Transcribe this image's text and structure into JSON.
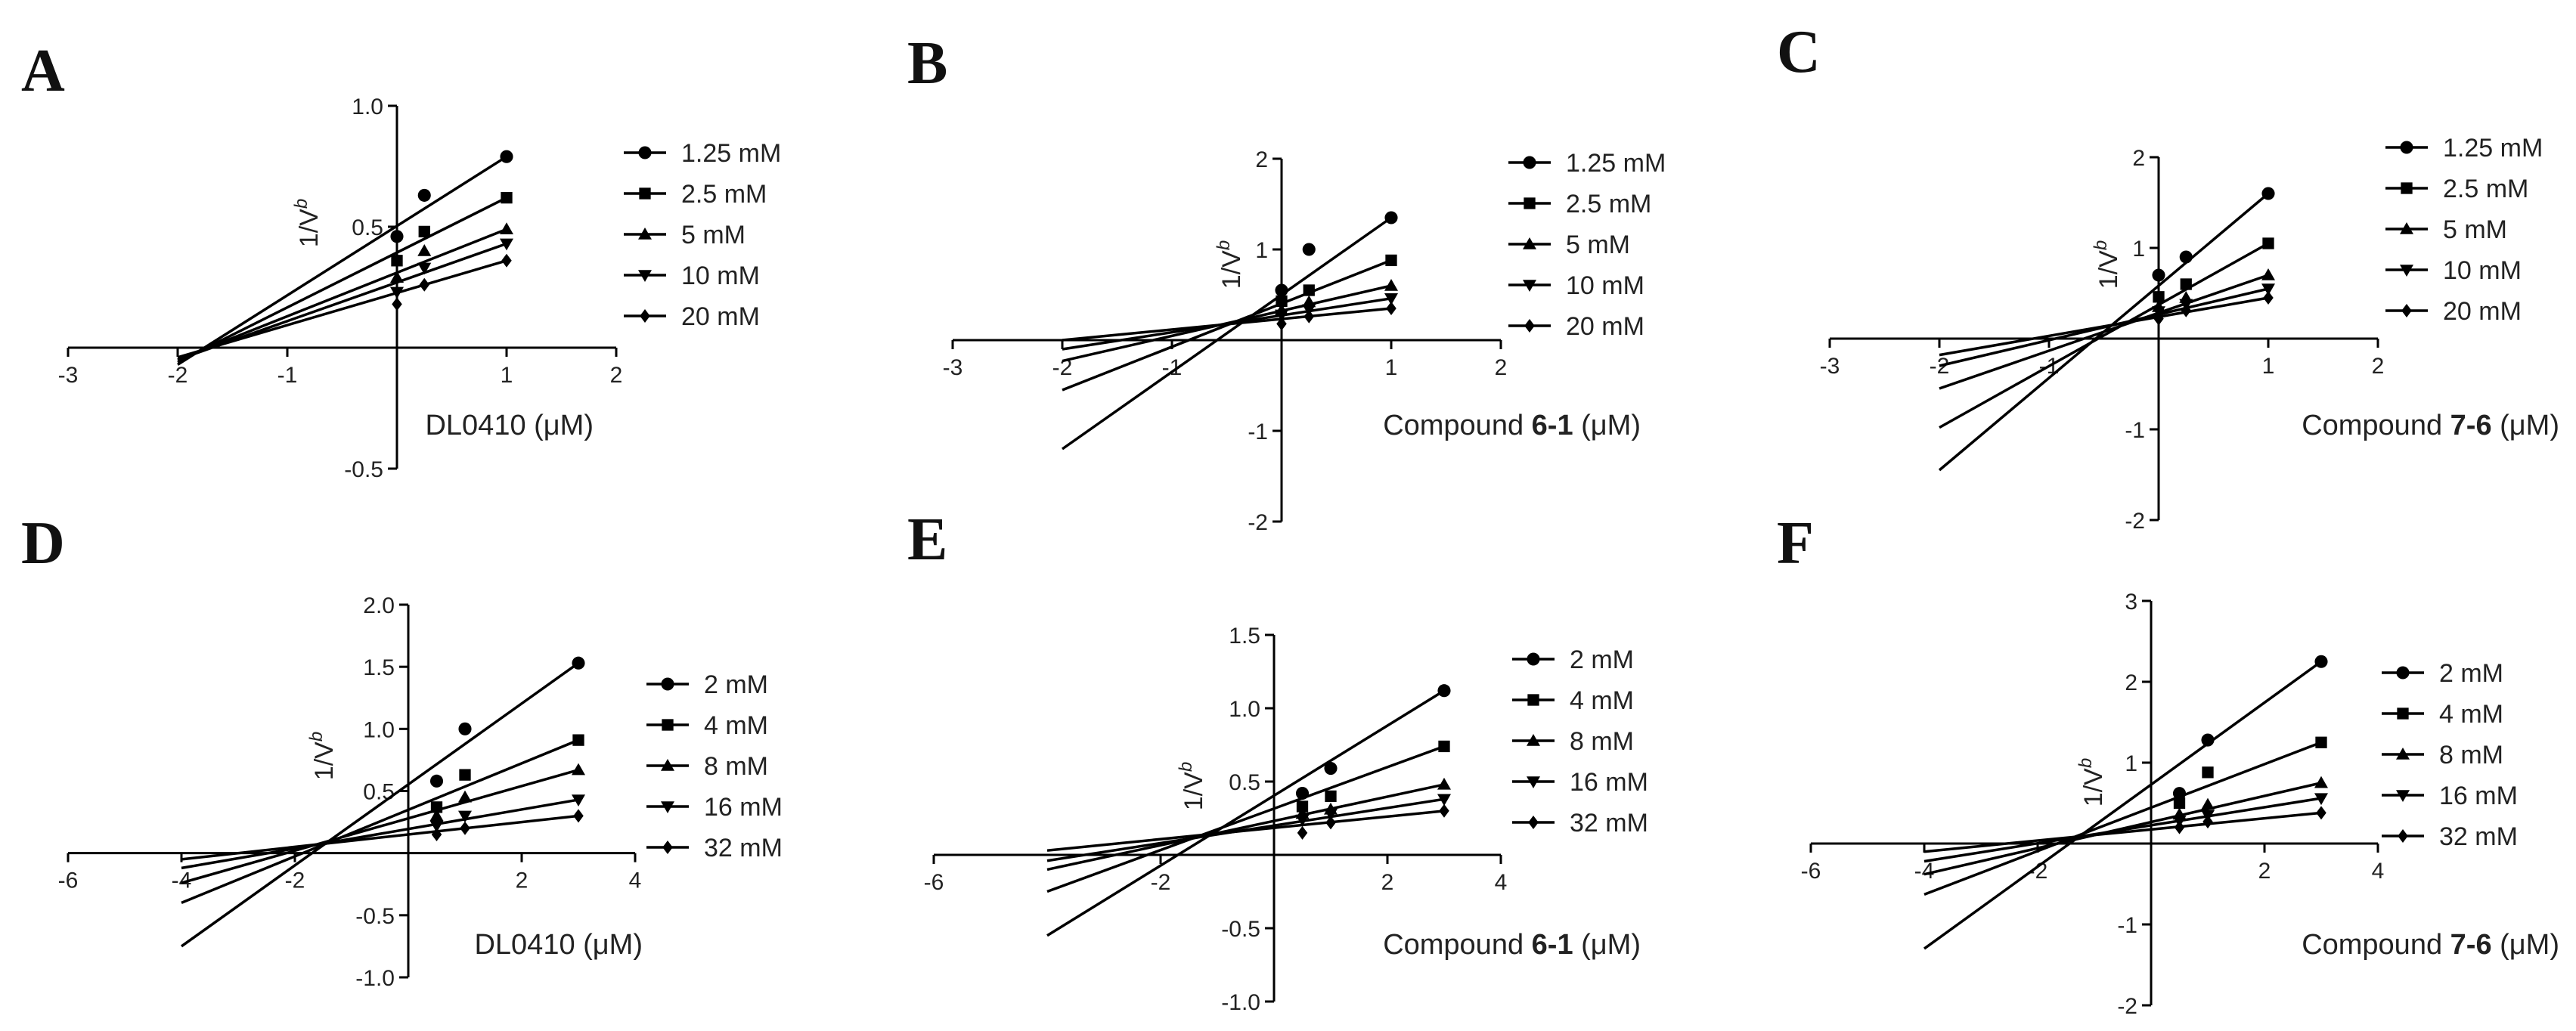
{
  "chart_data": [
    {
      "panel": "A",
      "type": "scatter",
      "xlabel": "DL0410 (μM)",
      "xlabel_prefix": "",
      "xlabel_bold": "",
      "xlabel_suffix": "",
      "ylabel_main": "1/V",
      "ylabel_sup": "b",
      "xlim": [
        -3,
        2
      ],
      "ylim": [
        -0.5,
        1.0
      ],
      "xticks": [
        -3,
        -2,
        -1,
        1,
        2
      ],
      "xtick_labels": [
        "-3",
        "-2",
        "-1",
        "1",
        "2"
      ],
      "yticks": [
        -0.5,
        0.5,
        1.0
      ],
      "ytick_labels": [
        "-0.5",
        "0.5",
        "1.0"
      ],
      "x": [
        0,
        0.25,
        1
      ],
      "series": [
        {
          "name": "1.25 mM",
          "marker": "circle",
          "values": [
            0.46,
            0.63,
            0.79
          ],
          "line": [
            -2,
            -0.07
          ]
        },
        {
          "name": "2.5 mM",
          "marker": "square",
          "values": [
            0.36,
            0.48,
            0.62
          ],
          "line": [
            -2,
            -0.06
          ]
        },
        {
          "name": "5 mM",
          "marker": "triangle-up",
          "values": [
            0.29,
            0.4,
            0.49
          ],
          "line": [
            -2,
            -0.05
          ]
        },
        {
          "name": "10 mM",
          "marker": "triangle-down",
          "values": [
            0.23,
            0.33,
            0.43
          ],
          "line": [
            -2,
            -0.05
          ]
        },
        {
          "name": "20 mM",
          "marker": "diamond",
          "values": [
            0.18,
            0.26,
            0.36
          ],
          "line": [
            -2,
            -0.04
          ]
        }
      ]
    },
    {
      "panel": "B",
      "type": "scatter",
      "xlabel": "",
      "xlabel_prefix": "Compound ",
      "xlabel_bold": "6-1",
      "xlabel_suffix": " (μM)",
      "ylabel_main": "1/V",
      "ylabel_sup": "b",
      "xlim": [
        -3,
        2
      ],
      "ylim": [
        -2,
        2
      ],
      "xticks": [
        -3,
        -2,
        -1,
        1,
        2
      ],
      "xtick_labels": [
        "-3",
        "-2",
        "-1",
        "1",
        "2"
      ],
      "yticks": [
        -2,
        -1,
        1,
        2
      ],
      "ytick_labels": [
        "-2",
        "-1",
        "1",
        "2"
      ],
      "x": [
        0,
        0.25,
        1
      ],
      "series": [
        {
          "name": "1.25 mM",
          "marker": "circle",
          "values": [
            0.55,
            1.0,
            1.35
          ],
          "line": [
            -2,
            -1.2
          ]
        },
        {
          "name": "2.5 mM",
          "marker": "square",
          "values": [
            0.43,
            0.55,
            0.88
          ],
          "line": [
            -2,
            -0.55
          ]
        },
        {
          "name": "5 mM",
          "marker": "triangle-up",
          "values": [
            0.33,
            0.42,
            0.6
          ],
          "line": [
            -2,
            -0.23
          ]
        },
        {
          "name": "10 mM",
          "marker": "triangle-down",
          "values": [
            0.28,
            0.34,
            0.46
          ],
          "line": [
            -2,
            -0.1
          ]
        },
        {
          "name": "20 mM",
          "marker": "diamond",
          "values": [
            0.18,
            0.26,
            0.35
          ],
          "line": [
            -2,
            0.0
          ]
        }
      ]
    },
    {
      "panel": "C",
      "type": "scatter",
      "xlabel": "",
      "xlabel_prefix": "Compound ",
      "xlabel_bold": "7-6",
      "xlabel_suffix": " (μM)",
      "ylabel_main": "1/V",
      "ylabel_sup": "b",
      "xlim": [
        -3,
        2
      ],
      "ylim": [
        -2,
        2
      ],
      "xticks": [
        -3,
        -2,
        -1,
        1,
        2
      ],
      "xtick_labels": [
        "-3",
        "-2",
        "-1",
        "1",
        "2"
      ],
      "yticks": [
        -2,
        -1,
        1,
        2
      ],
      "ytick_labels": [
        "-2",
        "-1",
        "1",
        "2"
      ],
      "x": [
        0,
        0.25,
        1
      ],
      "series": [
        {
          "name": "1.25 mM",
          "marker": "circle",
          "values": [
            0.7,
            0.9,
            1.6
          ],
          "line": [
            -2,
            -1.45
          ]
        },
        {
          "name": "2.5 mM",
          "marker": "square",
          "values": [
            0.46,
            0.6,
            1.05
          ],
          "line": [
            -2,
            -0.98
          ]
        },
        {
          "name": "5 mM",
          "marker": "triangle-up",
          "values": [
            0.35,
            0.45,
            0.7
          ],
          "line": [
            -2,
            -0.55
          ]
        },
        {
          "name": "10 mM",
          "marker": "triangle-down",
          "values": [
            0.3,
            0.38,
            0.55
          ],
          "line": [
            -2,
            -0.3
          ]
        },
        {
          "name": "20 mM",
          "marker": "diamond",
          "values": [
            0.22,
            0.31,
            0.45
          ],
          "line": [
            -2,
            -0.18
          ]
        }
      ]
    },
    {
      "panel": "D",
      "type": "scatter",
      "xlabel": "DL0410 (μM)",
      "xlabel_prefix": "",
      "xlabel_bold": "",
      "xlabel_suffix": "",
      "ylabel_main": "1/V",
      "ylabel_sup": "b",
      "xlim": [
        -6,
        4
      ],
      "ylim": [
        -1.0,
        2.0
      ],
      "xticks": [
        -6,
        -4,
        -2,
        2,
        4
      ],
      "xtick_labels": [
        "-6",
        "-4",
        "-2",
        "2",
        "4"
      ],
      "yticks": [
        -1.0,
        -0.5,
        0.5,
        1.0,
        1.5,
        2.0
      ],
      "ytick_labels": [
        "-1.0",
        "-0.5",
        "0.5",
        "1.0",
        "1.5",
        "2.0"
      ],
      "x": [
        0.5,
        1,
        3
      ],
      "series": [
        {
          "name": "2 mM",
          "marker": "circle",
          "values": [
            0.58,
            1.0,
            1.53
          ],
          "line": [
            -4,
            -0.75
          ]
        },
        {
          "name": "4 mM",
          "marker": "square",
          "values": [
            0.37,
            0.63,
            0.91
          ],
          "line": [
            -4,
            -0.4
          ]
        },
        {
          "name": "8 mM",
          "marker": "triangle-up",
          "values": [
            0.3,
            0.45,
            0.67
          ],
          "line": [
            -4,
            -0.24
          ]
        },
        {
          "name": "16 mM",
          "marker": "triangle-down",
          "values": [
            0.22,
            0.3,
            0.43
          ],
          "line": [
            -4,
            -0.12
          ]
        },
        {
          "name": "32 mM",
          "marker": "diamond",
          "values": [
            0.15,
            0.2,
            0.3
          ],
          "line": [
            -4,
            -0.05
          ]
        }
      ]
    },
    {
      "panel": "E",
      "type": "scatter",
      "xlabel": "",
      "xlabel_prefix": "Compound ",
      "xlabel_bold": "6-1",
      "xlabel_suffix": " (μM)",
      "ylabel_main": "1/V",
      "ylabel_sup": "b",
      "xlim": [
        -6,
        4
      ],
      "ylim": [
        -1.0,
        1.5
      ],
      "xticks": [
        -6,
        -2,
        2,
        4
      ],
      "xtick_labels": [
        "-6",
        "-2",
        "2",
        "4"
      ],
      "yticks": [
        -1.0,
        -0.5,
        0.5,
        1.0,
        1.5
      ],
      "ytick_labels": [
        "-1.0",
        "-0.5",
        "0.5",
        "1.0",
        "1.5"
      ],
      "x": [
        0.5,
        1,
        3
      ],
      "series": [
        {
          "name": "2 mM",
          "marker": "circle",
          "values": [
            0.42,
            0.59,
            1.12
          ],
          "line": [
            -4,
            -0.55
          ]
        },
        {
          "name": "4 mM",
          "marker": "square",
          "values": [
            0.33,
            0.4,
            0.74
          ],
          "line": [
            -4,
            -0.25
          ]
        },
        {
          "name": "8 mM",
          "marker": "triangle-up",
          "values": [
            0.28,
            0.31,
            0.48
          ],
          "line": [
            -4,
            -0.1
          ]
        },
        {
          "name": "16 mM",
          "marker": "triangle-down",
          "values": [
            0.24,
            0.28,
            0.38
          ],
          "line": [
            -4,
            -0.04
          ]
        },
        {
          "name": "32 mM",
          "marker": "diamond",
          "values": [
            0.15,
            0.22,
            0.3
          ],
          "line": [
            -4,
            0.03
          ]
        }
      ]
    },
    {
      "panel": "F",
      "type": "scatter",
      "xlabel": "",
      "xlabel_prefix": "Compound ",
      "xlabel_bold": "7-6",
      "xlabel_suffix": " (μM)",
      "ylabel_main": "1/V",
      "ylabel_sup": "b",
      "xlim": [
        -6,
        4
      ],
      "ylim": [
        -2,
        3
      ],
      "xticks": [
        -6,
        -4,
        -2,
        2,
        4
      ],
      "xtick_labels": [
        "-6",
        "-4",
        "-2",
        "2",
        "4"
      ],
      "yticks": [
        -2,
        -1,
        1,
        2,
        3
      ],
      "ytick_labels": [
        "-2",
        "-1",
        "1",
        "2",
        "3"
      ],
      "x": [
        0.5,
        1,
        3
      ],
      "series": [
        {
          "name": "2 mM",
          "marker": "circle",
          "values": [
            0.62,
            1.28,
            2.25
          ],
          "line": [
            -4,
            -1.3
          ]
        },
        {
          "name": "4 mM",
          "marker": "square",
          "values": [
            0.5,
            0.88,
            1.25
          ],
          "line": [
            -4,
            -0.63
          ]
        },
        {
          "name": "8 mM",
          "marker": "triangle-up",
          "values": [
            0.36,
            0.48,
            0.75
          ],
          "line": [
            -4,
            -0.38
          ]
        },
        {
          "name": "16 mM",
          "marker": "triangle-down",
          "values": [
            0.28,
            0.35,
            0.56
          ],
          "line": [
            -4,
            -0.22
          ]
        },
        {
          "name": "32 mM",
          "marker": "diamond",
          "values": [
            0.2,
            0.27,
            0.38
          ],
          "line": [
            -4,
            -0.1
          ]
        }
      ]
    }
  ]
}
